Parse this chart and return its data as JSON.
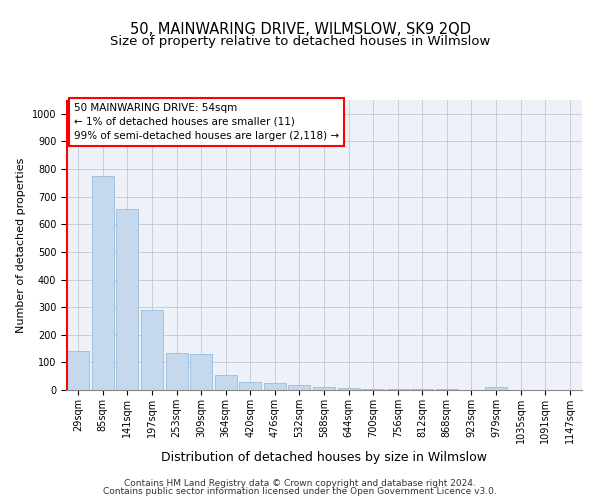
{
  "title": "50, MAINWARING DRIVE, WILMSLOW, SK9 2QD",
  "subtitle": "Size of property relative to detached houses in Wilmslow",
  "xlabel": "Distribution of detached houses by size in Wilmslow",
  "ylabel": "Number of detached properties",
  "categories": [
    "29sqm",
    "85sqm",
    "141sqm",
    "197sqm",
    "253sqm",
    "309sqm",
    "364sqm",
    "420sqm",
    "476sqm",
    "532sqm",
    "588sqm",
    "644sqm",
    "700sqm",
    "756sqm",
    "812sqm",
    "868sqm",
    "923sqm",
    "979sqm",
    "1035sqm",
    "1091sqm",
    "1147sqm"
  ],
  "values": [
    140,
    775,
    655,
    290,
    135,
    130,
    55,
    30,
    25,
    18,
    12,
    9,
    5,
    5,
    3,
    2,
    0,
    12,
    1,
    1,
    0
  ],
  "bar_color": "#c5d8ed",
  "bar_edge_color": "#8ab4d4",
  "highlight_color": "#ff0000",
  "annotation_box_text": "50 MAINWARING DRIVE: 54sqm\n← 1% of detached houses are smaller (11)\n99% of semi-detached houses are larger (2,118) →",
  "ylim": [
    0,
    1050
  ],
  "grid_color": "#c0c8d8",
  "background_color": "#eef2f8",
  "footer_line1": "Contains HM Land Registry data © Crown copyright and database right 2024.",
  "footer_line2": "Contains public sector information licensed under the Open Government Licence v3.0.",
  "title_fontsize": 10.5,
  "subtitle_fontsize": 9.5,
  "xlabel_fontsize": 9,
  "ylabel_fontsize": 8,
  "tick_fontsize": 7,
  "annotation_fontsize": 7.5,
  "footer_fontsize": 6.5
}
